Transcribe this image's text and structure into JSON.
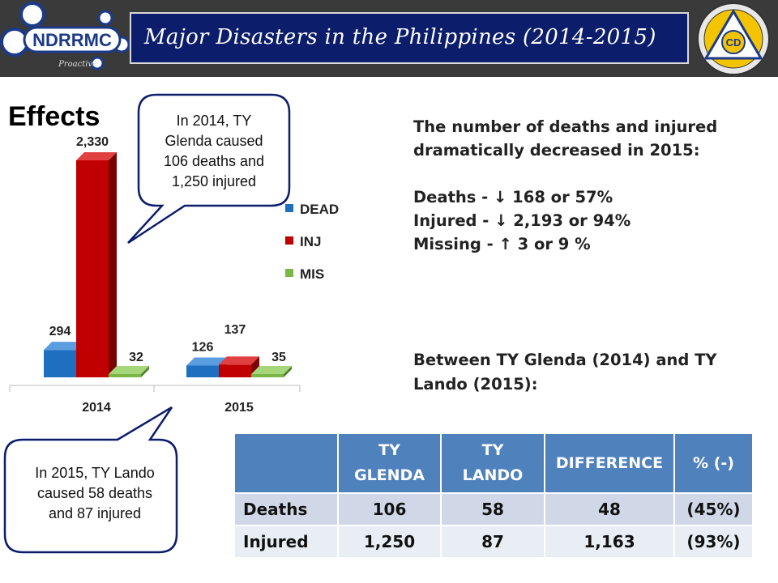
{
  "header": {
    "logo_text": "NDRRMC",
    "logo_sub": "Proactive",
    "title": "Major Disasters in the Philippines (2014-2015)",
    "seal_letters": "CD"
  },
  "section_title": "Effects",
  "callout_2014": [
    "In 2014, TY",
    "Glenda caused",
    "106 deaths and",
    "1,250 injured"
  ],
  "callout_2015": [
    "In 2015, TY Lando",
    "caused 58 deaths",
    "and 87 injured"
  ],
  "summary": {
    "heading_1": "The number of deaths and injured",
    "heading_2": "dramatically decreased in 2015:",
    "deaths": "Deaths - ↓ 168 or 57%",
    "injured": "Injured - ↓ 2,193 or 94%",
    "missing": "Missing - ↑ 3 or 9 %",
    "between_1": "Between TY Glenda (2014) and TY",
    "between_2": "Lando (2015):"
  },
  "table": {
    "headers": [
      [
        "",
        ""
      ],
      [
        "TY",
        "GLENDA"
      ],
      [
        "TY",
        "LANDO"
      ],
      [
        "DIFFERENCE",
        ""
      ],
      [
        "% (-)",
        ""
      ]
    ],
    "rows": [
      {
        "label": "Deaths",
        "glenda": "106",
        "lando": "58",
        "difference": "48",
        "pct": "(45%)"
      },
      {
        "label": "Injured",
        "glenda": "1,250",
        "lando": "87",
        "difference": "1,163",
        "pct": "(93%)"
      }
    ]
  },
  "colors": {
    "dead": "#1f6fc0",
    "inj": "#c00000",
    "mis": "#7ab648",
    "title_bar": "#0b1d6b",
    "table_header": "#4f81bd"
  },
  "chart_data": {
    "type": "bar",
    "title": "",
    "categories": [
      "2014",
      "2015"
    ],
    "series": [
      {
        "name": "DEAD",
        "values": [
          294,
          126
        ],
        "labels": [
          "294",
          "126"
        ]
      },
      {
        "name": "INJ",
        "values": [
          2330,
          137
        ],
        "labels": [
          "2,330",
          "137"
        ]
      },
      {
        "name": "MIS",
        "values": [
          32,
          35
        ],
        "labels": [
          "32",
          "35"
        ]
      }
    ],
    "ylim": [
      0,
      2330
    ],
    "grid": false,
    "legend": "right",
    "style": "3d"
  }
}
